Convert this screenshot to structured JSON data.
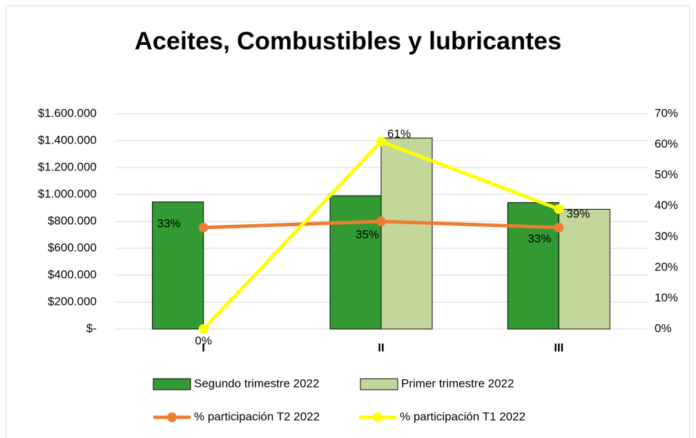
{
  "chart_data": {
    "type": "bar-line",
    "title": "Aceites, Combustibles y lubricantes",
    "categories": [
      "I",
      "II",
      "III"
    ],
    "series": [
      {
        "name": "Segundo trimestre 2022",
        "color": "#339933",
        "type": "bar",
        "values": [
          945000,
          990000,
          940000
        ]
      },
      {
        "name": "Primer trimestre 2022",
        "color": "#c4d79b",
        "type": "bar",
        "values": [
          0,
          1420000,
          890000
        ]
      },
      {
        "name": "% participación T2 2022",
        "color": "#ed7d31",
        "type": "line",
        "axis": "y2",
        "values": [
          33,
          35,
          33
        ],
        "value_labels": [
          "33%",
          "35%",
          "33%"
        ]
      },
      {
        "name": "% participación T1 2022",
        "color": "#ffff00",
        "type": "line",
        "axis": "y2",
        "values": [
          0,
          61,
          39
        ],
        "value_labels": [
          "0%",
          "61%",
          "39%"
        ]
      }
    ],
    "ylim": [
      0,
      1600000
    ],
    "yticks": [
      {
        "value": 0,
        "label": "$-"
      },
      {
        "value": 200000,
        "label": "$200.000"
      },
      {
        "value": 400000,
        "label": "$400.000"
      },
      {
        "value": 600000,
        "label": "$600.000"
      },
      {
        "value": 800000,
        "label": "$800.000"
      },
      {
        "value": 1000000,
        "label": "$1.000.000"
      },
      {
        "value": 1200000,
        "label": "$1.200.000"
      },
      {
        "value": 1400000,
        "label": "$1.400.000"
      },
      {
        "value": 1600000,
        "label": "$1.600.000"
      }
    ],
    "y2lim": [
      0,
      70
    ],
    "y2ticks": [
      {
        "value": 0,
        "label": "0%"
      },
      {
        "value": 10,
        "label": "10%"
      },
      {
        "value": 20,
        "label": "20%"
      },
      {
        "value": 30,
        "label": "30%"
      },
      {
        "value": 40,
        "label": "40%"
      },
      {
        "value": 50,
        "label": "50%"
      },
      {
        "value": 60,
        "label": "60%"
      },
      {
        "value": 70,
        "label": "70%"
      }
    ],
    "grid": true,
    "legend": "bottom"
  }
}
